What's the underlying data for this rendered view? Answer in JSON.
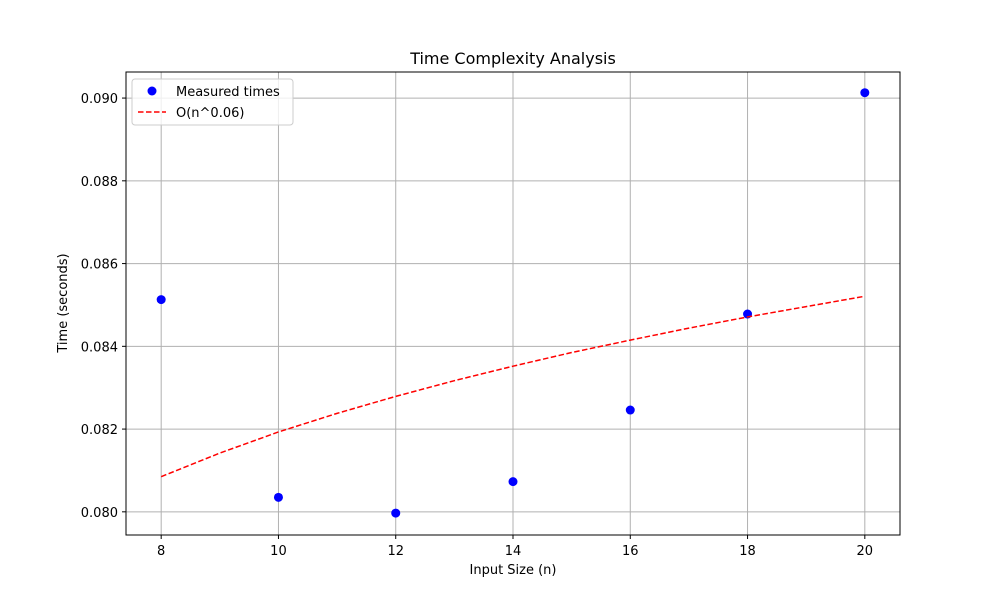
{
  "chart_data": {
    "type": "scatter",
    "title": "Time Complexity Analysis",
    "xlabel": "Input Size (n)",
    "ylabel": "Time (seconds)",
    "xlim": [
      7.4,
      20.6
    ],
    "ylim": [
      0.07944,
      0.09063
    ],
    "xticks": [
      8,
      10,
      12,
      14,
      16,
      18,
      20
    ],
    "yticks": [
      0.08,
      0.082,
      0.084,
      0.086,
      0.088,
      0.09
    ],
    "ytick_labels": [
      "0.080",
      "0.082",
      "0.084",
      "0.086",
      "0.088",
      "0.090"
    ],
    "grid": true,
    "legend_position": "top-left",
    "series": [
      {
        "name": "Measured times",
        "kind": "scatter",
        "color": "#0000ff",
        "x": [
          8,
          10,
          12,
          14,
          16,
          18,
          20
        ],
        "y": [
          0.08513,
          0.08035,
          0.07997,
          0.08073,
          0.08246,
          0.08478,
          0.09013
        ]
      },
      {
        "name": "O(n^0.06)",
        "kind": "line",
        "style": "dashed",
        "color": "#ff0000",
        "x": [
          8,
          9,
          10,
          11,
          12,
          13,
          14,
          15,
          16,
          17,
          18,
          19,
          20
        ],
        "y": [
          0.08085,
          0.08142,
          0.08193,
          0.08238,
          0.08279,
          0.08317,
          0.08352,
          0.08385,
          0.08415,
          0.08444,
          0.08471,
          0.08496,
          0.08521
        ]
      }
    ]
  }
}
